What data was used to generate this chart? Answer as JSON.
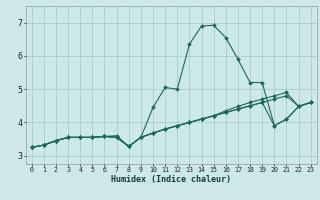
{
  "title": "",
  "xlabel": "Humidex (Indice chaleur)",
  "ylabel": "",
  "bg_color": "#cce8e8",
  "grid_color": "#aacccc",
  "line_color": "#1a6b5a",
  "xlim": [
    -0.5,
    23.5
  ],
  "ylim": [
    2.75,
    7.5
  ],
  "xtick_labels": [
    "0",
    "1",
    "2",
    "3",
    "4",
    "5",
    "6",
    "7",
    "8",
    "9",
    "10",
    "11",
    "12",
    "13",
    "14",
    "15",
    "16",
    "17",
    "18",
    "19",
    "20",
    "21",
    "22",
    "23"
  ],
  "ytick_vals": [
    3,
    4,
    5,
    6,
    7
  ],
  "ytick_labels": [
    "3",
    "4",
    "5",
    "6",
    "7"
  ],
  "series": [
    [
      3.25,
      3.32,
      3.45,
      3.55,
      3.55,
      3.55,
      3.58,
      3.6,
      3.28,
      3.55,
      4.45,
      5.05,
      5.0,
      6.35,
      6.9,
      6.92,
      6.55,
      5.9,
      5.2,
      5.2,
      3.9,
      4.1,
      4.48,
      4.6
    ],
    [
      3.25,
      3.32,
      3.45,
      3.55,
      3.55,
      3.55,
      3.58,
      3.55,
      3.28,
      3.55,
      3.68,
      3.8,
      3.9,
      4.0,
      4.1,
      4.2,
      4.3,
      4.4,
      4.5,
      4.6,
      4.7,
      4.8,
      4.48,
      4.6
    ],
    [
      3.25,
      3.32,
      3.45,
      3.55,
      3.55,
      3.55,
      3.58,
      3.55,
      3.28,
      3.55,
      3.68,
      3.8,
      3.9,
      4.0,
      4.1,
      4.2,
      4.3,
      4.4,
      4.5,
      4.6,
      3.9,
      4.1,
      4.48,
      4.6
    ],
    [
      3.25,
      3.32,
      3.45,
      3.55,
      3.55,
      3.55,
      3.58,
      3.55,
      3.28,
      3.55,
      3.68,
      3.8,
      3.9,
      4.0,
      4.1,
      4.2,
      4.35,
      4.48,
      4.6,
      4.7,
      4.8,
      4.9,
      4.48,
      4.6
    ]
  ]
}
